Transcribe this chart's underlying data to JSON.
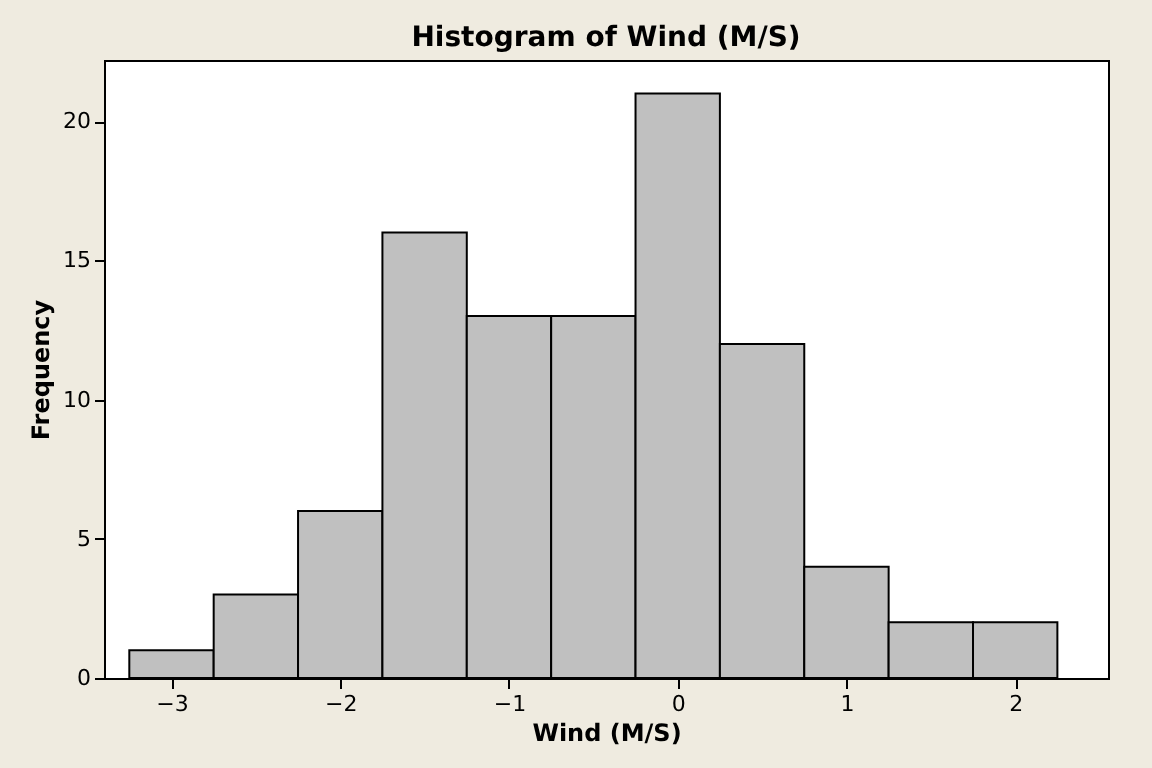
{
  "chart_data": {
    "type": "histogram",
    "title": "Histogram of Wind (M/S)",
    "xlabel": "Wind (M/S)",
    "ylabel": "Frequency",
    "bins": [
      -3.25,
      -2.75,
      -2.25,
      -1.75,
      -1.25,
      -0.75,
      -0.25,
      0.25,
      0.75,
      1.25,
      1.75,
      2.25
    ],
    "values": [
      1,
      3,
      6,
      16,
      13,
      13,
      21,
      12,
      4,
      2,
      2
    ],
    "color": "#c0c0c0",
    "xlim": [
      -3.4,
      2.55
    ],
    "xticks": [
      -3,
      -2,
      -1,
      0,
      1,
      2
    ],
    "ylim": [
      0,
      22.2
    ],
    "yticks": [
      0,
      5,
      10,
      15,
      20
    ],
    "grid": false
  }
}
